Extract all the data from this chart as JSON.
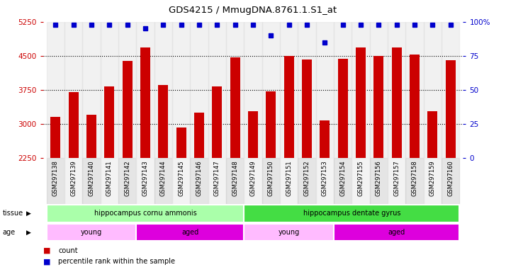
{
  "title": "GDS4215 / MmugDNA.8761.1.S1_at",
  "samples": [
    "GSM297138",
    "GSM297139",
    "GSM297140",
    "GSM297141",
    "GSM297142",
    "GSM297143",
    "GSM297144",
    "GSM297145",
    "GSM297146",
    "GSM297147",
    "GSM297148",
    "GSM297149",
    "GSM297150",
    "GSM297151",
    "GSM297152",
    "GSM297153",
    "GSM297154",
    "GSM297155",
    "GSM297156",
    "GSM297157",
    "GSM297158",
    "GSM297159",
    "GSM297160"
  ],
  "counts": [
    3150,
    3700,
    3200,
    3820,
    4380,
    4680,
    3850,
    2920,
    3250,
    3830,
    4470,
    3270,
    3720,
    4500,
    4420,
    3080,
    4440,
    4680,
    4490,
    4680,
    4530,
    3280,
    4400
  ],
  "percentile_ranks": [
    98,
    98,
    98,
    98,
    98,
    95,
    98,
    98,
    98,
    98,
    98,
    98,
    90,
    98,
    98,
    85,
    98,
    98,
    98,
    98,
    98,
    98,
    98
  ],
  "bar_color": "#cc0000",
  "dot_color": "#0000cc",
  "ylim_left": [
    2250,
    5250
  ],
  "yticks_left": [
    2250,
    3000,
    3750,
    4500,
    5250
  ],
  "ylim_right": [
    0,
    100
  ],
  "yticks_right": [
    0,
    25,
    50,
    75,
    100
  ],
  "yright_labels": [
    "0",
    "25",
    "50",
    "75",
    "100%"
  ],
  "tissue_groups": [
    {
      "label": "hippocampus cornu ammonis",
      "start": 0,
      "end": 11,
      "color": "#aaffaa"
    },
    {
      "label": "hippocampus dentate gyrus",
      "start": 11,
      "end": 23,
      "color": "#44dd44"
    }
  ],
  "age_groups": [
    {
      "label": "young",
      "start": 0,
      "end": 5,
      "color": "#ffbbff"
    },
    {
      "label": "aged",
      "start": 5,
      "end": 11,
      "color": "#dd00dd"
    },
    {
      "label": "young",
      "start": 11,
      "end": 16,
      "color": "#ffbbff"
    },
    {
      "label": "aged",
      "start": 16,
      "end": 23,
      "color": "#dd00dd"
    }
  ],
  "tissue_label": "tissue",
  "age_label": "age",
  "legend_count": "count",
  "legend_percentile": "percentile rank within the sample",
  "bg_color": "#ffffff",
  "left_tick_color": "#cc0000",
  "right_tick_color": "#0000cc",
  "xticklabel_bg": "#dddddd"
}
